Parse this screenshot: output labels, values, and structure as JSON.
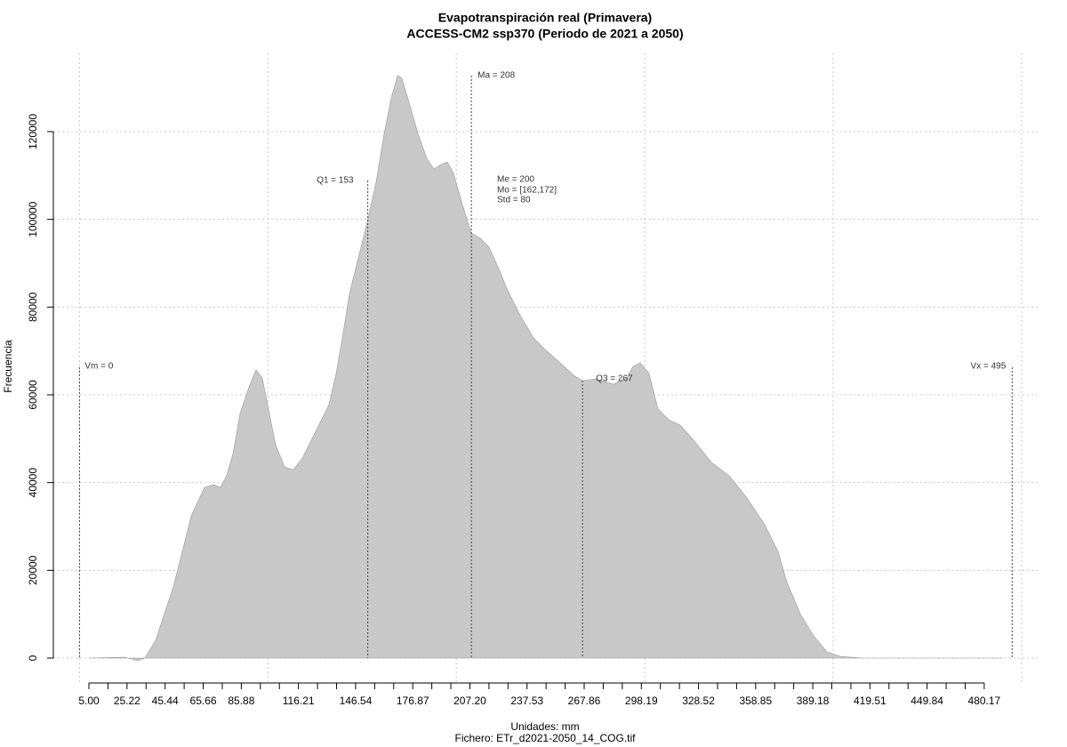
{
  "chart_data": {
    "type": "area",
    "title": "Evapotranspiración real (Primavera)",
    "subtitle": "ACCESS-CM2 ssp370 (Periodo de 2021 a 2050)",
    "xlabel": "Unidades: mm",
    "caption": "Fichero: ETr_d2021-2050_14_COG.tif",
    "ylabel": "Frecuencia",
    "color": "#c8c8c8",
    "grid": true,
    "x": [
      5,
      23.9,
      31,
      34.7,
      40.4,
      45.1,
      49.8,
      54.6,
      59.3,
      62.6,
      66.4,
      71.1,
      74.8,
      78.1,
      81.5,
      85.2,
      90,
      93.7,
      97,
      100.3,
      104.1,
      108.8,
      113.5,
      118.3,
      123,
      127.7,
      132.4,
      136.2,
      139.5,
      143.3,
      148,
      152.7,
      157.4,
      161.7,
      165.5,
      168.8,
      171.1,
      174.9,
      179.6,
      184.3,
      188.1,
      191.9,
      195.2,
      198.5,
      203.2,
      207.9,
      212.8,
      217.4,
      222.1,
      226.9,
      234,
      241,
      248.1,
      255.1,
      262.2,
      266.9,
      274,
      283.4,
      290.5,
      293.8,
      297.6,
      302.3,
      307,
      312.7,
      318.8,
      325.9,
      335.4,
      344.8,
      354.3,
      363.7,
      370.7,
      375.5,
      382.5,
      389.6,
      396.7,
      403.8,
      415.6,
      489.7
    ],
    "values": [
      0,
      200,
      -600,
      0,
      4054,
      10135,
      16216,
      24324,
      32432,
      35473,
      38918,
      39527,
      38918,
      41554,
      46621,
      55743,
      61824,
      65675,
      63851,
      56757,
      48648,
      43581,
      42973,
      45608,
      49662,
      53716,
      57770,
      64864,
      72973,
      83108,
      91216,
      99324,
      108446,
      119594,
      127702,
      132770,
      132162,
      126689,
      119594,
      113919,
      111486,
      112500,
      113108,
      110473,
      103378,
      96892,
      95676,
      93649,
      89189,
      84121,
      78040,
      72973,
      69932,
      67297,
      64459,
      63243,
      63649,
      62432,
      63851,
      66486,
      67297,
      64864,
      56757,
      54324,
      53108,
      49662,
      44595,
      41554,
      36486,
      30405,
      24324,
      17230,
      10135,
      5068,
      1419,
      405,
      0,
      0
    ],
    "xlim": [
      -13.877,
      509.95
    ],
    "ylim": [
      -5676,
      137838
    ],
    "yticks": [
      0,
      20000,
      40000,
      60000,
      80000,
      100000,
      120000
    ],
    "xticks": [
      {
        "value": 5,
        "label": "5.00"
      },
      25.22,
      45.44,
      65.66,
      85.88,
      116.21,
      146.54,
      176.87,
      {
        "value": 207.2,
        "label": "207.20"
      },
      237.53,
      267.86,
      298.19,
      328.52,
      358.85,
      389.18,
      419.51,
      449.84,
      480.17
    ],
    "xminor": [
      15.11,
      35.33,
      55.55,
      75.77,
      95.99,
      106.1,
      126.32,
      136.43,
      156.65,
      166.76,
      186.98,
      197.09,
      217.31,
      227.42,
      247.64,
      257.75,
      277.97,
      288.08,
      308.3,
      318.41,
      338.63,
      348.74,
      368.96,
      379.07,
      399.29,
      409.4,
      429.62,
      439.73,
      459.95,
      470.06
    ],
    "xgrid": [
      0,
      100,
      200,
      300,
      400,
      500
    ],
    "annotations": [
      {
        "text": "Vm = 0",
        "x": 0
      },
      {
        "text": "Q1 = 153",
        "x": 153
      },
      {
        "text": "Ma = 208",
        "x": 208
      },
      {
        "text": "Me = 200"
      },
      {
        "text": "Mo = [162,172]"
      },
      {
        "text": "Std = 80"
      },
      {
        "text": "Q3 = 267",
        "x": 267
      },
      {
        "text": "Vx = 495",
        "x": 495
      }
    ]
  }
}
